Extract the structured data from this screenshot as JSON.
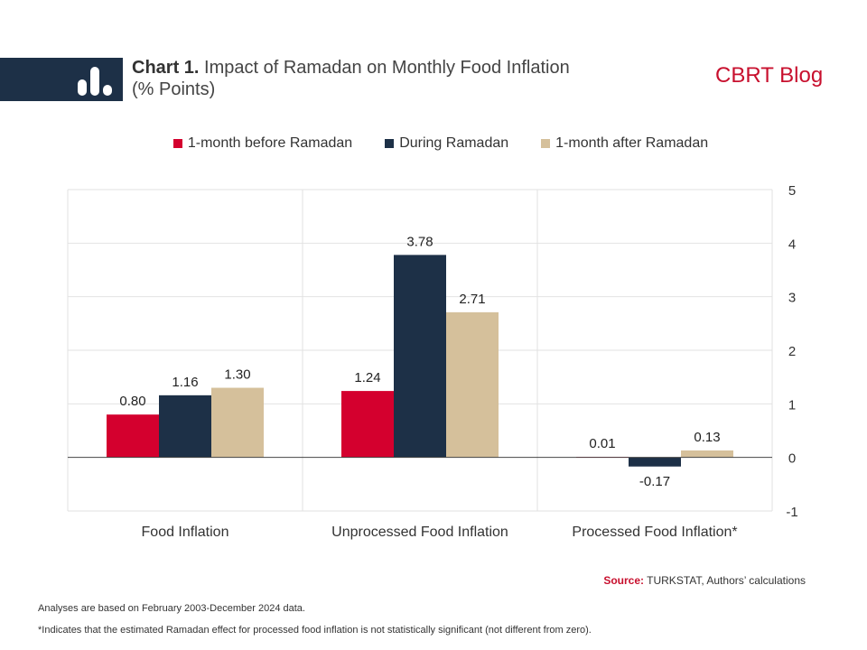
{
  "header": {
    "chart_label": "Chart 1.",
    "chart_title": "Impact of Ramadan on Monthly Food Inflation",
    "chart_subtitle": "(% Points)",
    "brand": "CBRT Blog"
  },
  "colors": {
    "band": "#1d3047",
    "brand": "#c8102e",
    "before": "#d4002e",
    "during": "#1d3047",
    "after": "#d5c09b"
  },
  "chart_data": {
    "type": "bar",
    "categories": [
      "Food Inflation",
      "Unprocessed Food Inflation",
      "Processed Food Inflation*"
    ],
    "series": [
      {
        "name": "1-month before Ramadan",
        "values": [
          0.8,
          1.24,
          0.01
        ],
        "labels": [
          "0.80",
          "1.24",
          "0.01"
        ]
      },
      {
        "name": "During Ramadan",
        "values": [
          1.16,
          3.78,
          -0.17
        ],
        "labels": [
          "1.16",
          "3.78",
          "-0.17"
        ]
      },
      {
        "name": "1-month after Ramadan",
        "values": [
          1.3,
          2.71,
          0.13
        ],
        "labels": [
          "1.30",
          "2.71",
          "0.13"
        ]
      }
    ],
    "ylim": [
      -1,
      5
    ],
    "yticks": [
      "5",
      "4",
      "3",
      "2",
      "1",
      "0",
      "-1"
    ],
    "y_axis_position": "right",
    "legend_position": "top-center",
    "grid": true
  },
  "footer": {
    "source_label": "Source:",
    "source_text": " TURKSTAT, Authors’ calculations",
    "note1": "Analyses are based on February 2003-December 2024 data.",
    "note2": "*Indicates that the estimated Ramadan effect for processed food inflation is not statistically significant (not different from zero)."
  }
}
